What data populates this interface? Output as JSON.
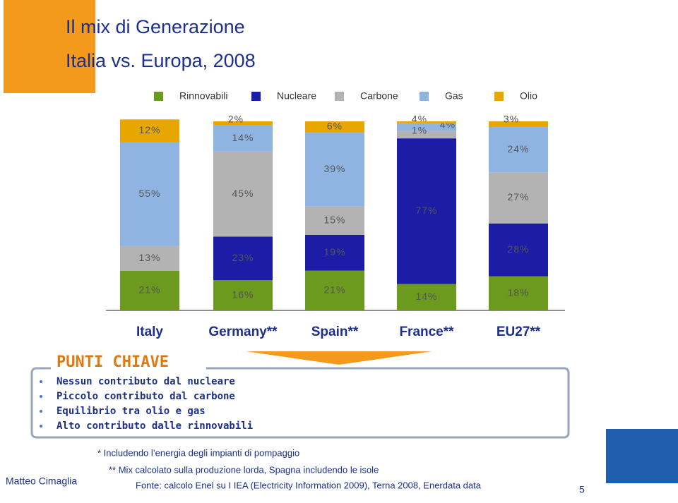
{
  "header": {
    "title": "Il mix di Generazione",
    "subtitle": "Italia vs. Europa, 2008"
  },
  "chart_data": {
    "type": "stacked_bar",
    "categories": [
      "Italy",
      "Germany**",
      "Spain**",
      "France**",
      "EU27**"
    ],
    "ylim": [
      0,
      100
    ],
    "series": [
      {
        "name": "Rinnovabili",
        "color": "#6b9a1e",
        "values": [
          21,
          16,
          21,
          14,
          18
        ],
        "value_labels": [
          "21%",
          "16%",
          "21%",
          "14%",
          "18%"
        ]
      },
      {
        "name": "Nucleare",
        "color": "#1c1ca6",
        "values": [
          null,
          23,
          19,
          77,
          28
        ],
        "value_labels": [
          null,
          "23%",
          "19%",
          "77%",
          "28%"
        ]
      },
      {
        "name": "Carbone",
        "color": "#b3b3b3",
        "values": [
          13,
          45,
          15,
          4,
          27
        ],
        "value_labels": [
          "13%",
          "45%",
          "15%",
          "4%",
          "27%"
        ]
      },
      {
        "name": "Gas",
        "color": "#8fb4e2",
        "values": [
          55,
          14,
          39,
          4,
          24
        ],
        "value_labels": [
          "55%",
          "14%",
          "39%",
          "4%",
          "24%"
        ]
      },
      {
        "name": "Olio",
        "color": "#e8a600",
        "values": [
          12,
          2,
          6,
          1,
          3
        ],
        "value_labels": [
          "12%",
          "2%",
          "6%",
          "1%",
          "3%"
        ]
      }
    ]
  },
  "key_points": {
    "title": "PUNTI CHIAVE",
    "items": [
      "Nessun contributo dal nucleare",
      "Piccolo contributo dal carbone",
      "Equilibrio tra olio e gas",
      "Alto contributo dalle rinnovabili"
    ]
  },
  "footnotes": [
    "* Includendo l’energia degli impianti di pompaggio",
    "** Mix calcolato sulla produzione lorda, Spagna includendo le isole",
    "Fonte: calcolo Enel su I IEA (Electricity Information 2009), Terna 2008, Enerdata data"
  ],
  "author": "Matteo Cimaglia",
  "page_number": "5"
}
